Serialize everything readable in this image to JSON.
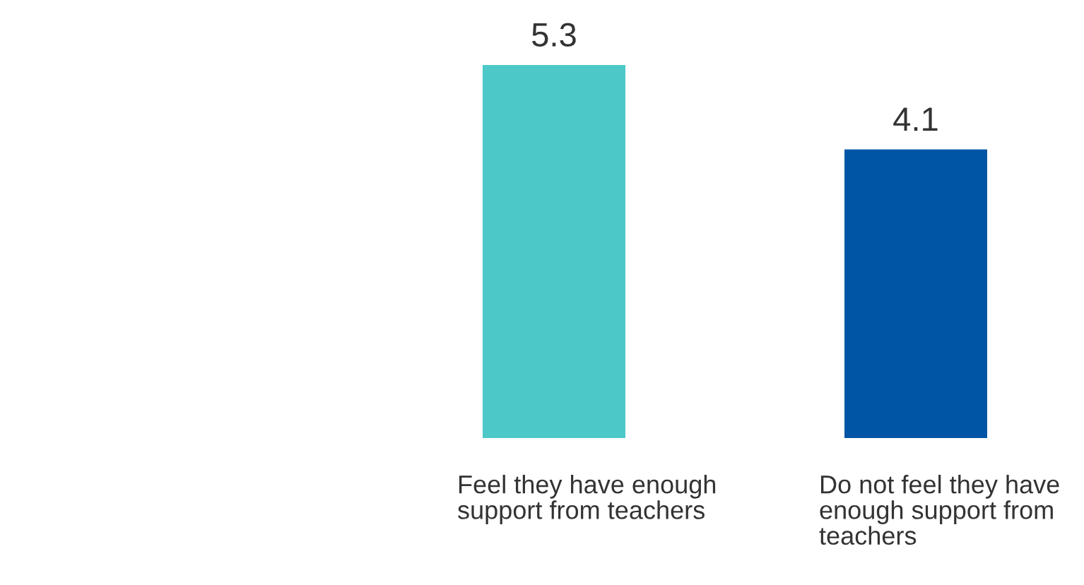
{
  "chart_data": {
    "type": "bar",
    "categories": [
      "Feel they have enough support from teachers",
      "Do not feel they have enough support from teachers"
    ],
    "values": [
      5.3,
      4.1
    ],
    "colors": [
      "#4dc8c8",
      "#0055a5"
    ],
    "data_labels": true
  }
}
